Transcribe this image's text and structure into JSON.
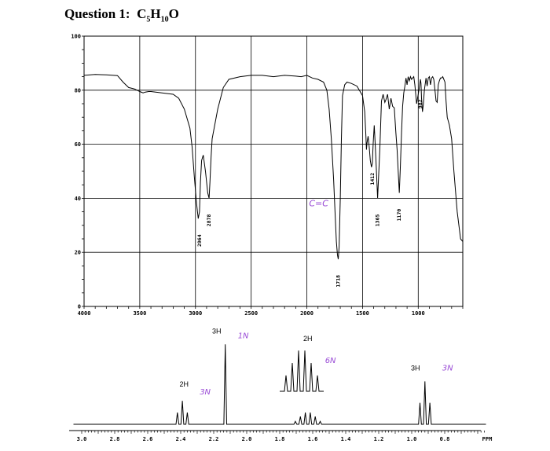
{
  "header": {
    "question": "Question 1:",
    "formula": [
      "C",
      "5",
      "H",
      "10",
      "O"
    ]
  },
  "chart_data": [
    {
      "type": "line",
      "title": "",
      "xlabel": "",
      "ylabel": "",
      "xlim": [
        4000,
        600
      ],
      "ylim": [
        0,
        100
      ],
      "x_ticks": [
        4000,
        3500,
        3000,
        2500,
        2000,
        1500,
        1000
      ],
      "x_tick_labels": [
        "4000",
        "3500",
        "3000",
        "2500",
        "2000",
        "1500",
        "1000"
      ],
      "y_ticks": [
        0,
        20,
        40,
        60,
        80,
        100
      ],
      "y_tick_labels": [
        "0",
        "20",
        "40",
        "60",
        "80",
        "100"
      ],
      "grid": true,
      "series": [
        {
          "name": "",
          "x": [
            4000,
            3900,
            3800,
            3700,
            3650,
            3600,
            3550,
            3500,
            3470,
            3450,
            3420,
            3400,
            3300,
            3200,
            3150,
            3100,
            3050,
            3030,
            3010,
            2990,
            2975,
            2964,
            2955,
            2945,
            2930,
            2910,
            2890,
            2878,
            2870,
            2860,
            2850,
            2800,
            2750,
            2700,
            2600,
            2500,
            2400,
            2300,
            2200,
            2100,
            2050,
            2000,
            1950,
            1900,
            1850,
            1820,
            1800,
            1780,
            1760,
            1745,
            1735,
            1725,
            1718,
            1710,
            1700,
            1690,
            1680,
            1660,
            1640,
            1600,
            1550,
            1500,
            1480,
            1470,
            1465,
            1460,
            1450,
            1440,
            1430,
            1420,
            1412,
            1405,
            1395,
            1385,
            1375,
            1365,
            1355,
            1345,
            1330,
            1315,
            1300,
            1290,
            1275,
            1260,
            1245,
            1230,
            1215,
            1200,
            1190,
            1180,
            1170,
            1160,
            1150,
            1140,
            1130,
            1120,
            1110,
            1100,
            1090,
            1080,
            1070,
            1060,
            1050,
            1040,
            1030,
            1015,
            1000,
            990,
            980,
            975,
            970,
            962,
            955,
            945,
            930,
            920,
            910,
            900,
            890,
            880,
            870,
            860,
            850,
            840,
            830,
            820,
            810,
            800,
            790,
            780,
            770,
            760,
            750,
            740,
            720,
            700,
            680,
            650,
            620,
            600
          ],
          "y": [
            85.5,
            85.8,
            85.7,
            85.4,
            83,
            81,
            80.5,
            79.5,
            79,
            79.3,
            79.5,
            79.5,
            79,
            78.5,
            77,
            73,
            66,
            59,
            48,
            38,
            32.5,
            35,
            46,
            54,
            56,
            50,
            42,
            40,
            46,
            55,
            62,
            73,
            81,
            84,
            85,
            85.5,
            85.5,
            85,
            85.5,
            85.2,
            85,
            85.5,
            84.5,
            84,
            83,
            80,
            73,
            62,
            47,
            33,
            24,
            19,
            17.5,
            22,
            40,
            62,
            78,
            82,
            83,
            82.5,
            81.5,
            78,
            72,
            63,
            58,
            60.5,
            63,
            59,
            54,
            51.5,
            53,
            60,
            67,
            59,
            50,
            40,
            49,
            58,
            76,
            78.5,
            75.5,
            76.5,
            78.5,
            73,
            77,
            74,
            73.5,
            64,
            58,
            50,
            42,
            52,
            64,
            74,
            79,
            81.5,
            84.5,
            82,
            85,
            83.5,
            85,
            84,
            84.5,
            85,
            82,
            75,
            78.5,
            81,
            84,
            82.5,
            77,
            72,
            74.5,
            80,
            84.5,
            81.5,
            84.5,
            85,
            82,
            84.5,
            85,
            84,
            80,
            76,
            75.5,
            82,
            83.5,
            84.5,
            84.5,
            85,
            84,
            83,
            76,
            70,
            67,
            62,
            50,
            35,
            25,
            24
          ]
        }
      ],
      "annotations": [
        {
          "label": "2964",
          "x": 2964,
          "y": 32.5
        },
        {
          "label": "2878",
          "x": 2878,
          "y": 40
        },
        {
          "label": "1718",
          "x": 1718,
          "y": 17.5
        },
        {
          "label": "1412",
          "x": 1412,
          "y": 53
        },
        {
          "label": "1365",
          "x": 1365,
          "y": 40
        },
        {
          "label": "1170",
          "x": 1170,
          "y": 42
        },
        {
          "label": "982",
          "x": 982,
          "y": 72
        }
      ],
      "handwritten": [
        {
          "text": "C=C",
          "x": 1980,
          "y": 37
        }
      ]
    },
    {
      "type": "line",
      "title": "",
      "xlabel": "",
      "ylabel": "",
      "xlim": [
        3.0,
        0.6
      ],
      "x_ticks": [
        3.0,
        2.8,
        2.6,
        2.4,
        2.2,
        2.0,
        1.8,
        1.6,
        1.4,
        1.2,
        1.0,
        0.8
      ],
      "x_tick_labels": [
        "3.0",
        "2.8",
        "2.6",
        "2.4",
        "2.2",
        "2.0",
        "1.8",
        "1.6",
        "1.4",
        "1.2",
        "1.0",
        "0.8"
      ],
      "x_unit": "PPM",
      "grid": false,
      "peaks": [
        {
          "label": "2H",
          "note": "3N",
          "center": 2.38,
          "lines": [
            2.42,
            2.39,
            2.36
          ],
          "heights": [
            0.12,
            0.24,
            0.12
          ]
        },
        {
          "label": "3H",
          "note": "1N",
          "center": 2.13,
          "lines": [
            2.13
          ],
          "heights": [
            0.82
          ]
        },
        {
          "label": "2H",
          "note": "6N",
          "center": 1.63,
          "lines": [
            1.705,
            1.675,
            1.645,
            1.615,
            1.585,
            1.555
          ],
          "heights": [
            0.03,
            0.08,
            0.12,
            0.12,
            0.08,
            0.03
          ]
        },
        {
          "label": "3H",
          "note": "3N",
          "center": 0.92,
          "lines": [
            0.95,
            0.92,
            0.89
          ],
          "heights": [
            0.22,
            0.44,
            0.22
          ]
        }
      ],
      "inset": {
        "of_peak": 2,
        "heights": [
          0.28,
          0.5,
          0.72,
          0.72,
          0.5,
          0.28
        ]
      }
    }
  ]
}
